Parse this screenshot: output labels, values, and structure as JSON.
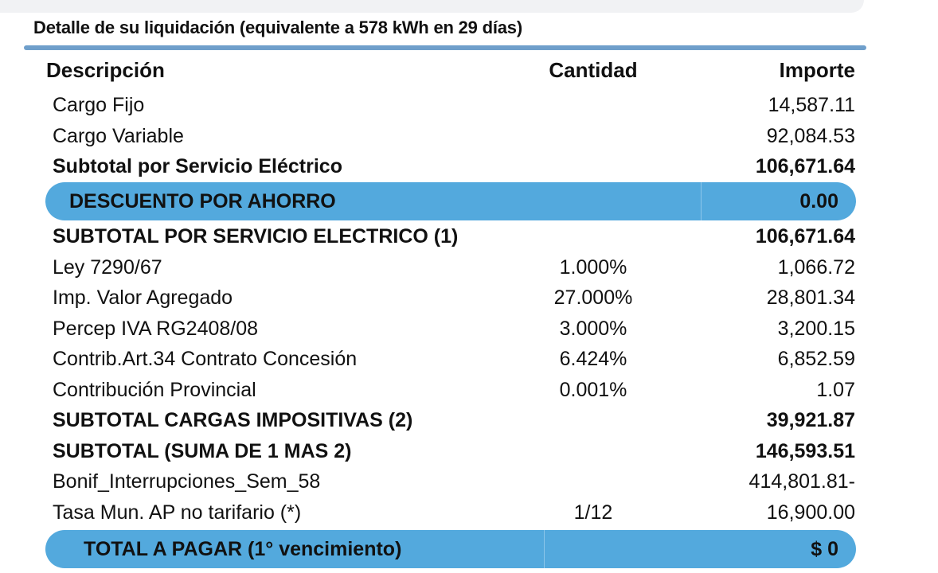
{
  "title": "Detalle de su liquidación (equivalente a 578 kWh en 29 días)",
  "columns": {
    "description": "Descripción",
    "quantity": "Cantidad",
    "amount": "Importe"
  },
  "rows": [
    {
      "description": "Cargo Fijo",
      "quantity": "",
      "amount": "14,587.11",
      "bold": false
    },
    {
      "description": "Cargo Variable",
      "quantity": "",
      "amount": "92,084.53",
      "bold": false
    },
    {
      "description": "Subtotal por Servicio Eléctrico",
      "quantity": "",
      "amount": "106,671.64",
      "bold": true
    }
  ],
  "discount": {
    "description": "DESCUENTO POR AHORRO",
    "amount": "0.00"
  },
  "rows2": [
    {
      "description": "SUBTOTAL POR SERVICIO ELECTRICO (1)",
      "quantity": "",
      "amount": "106,671.64",
      "bold": true
    },
    {
      "description": "Ley 7290/67",
      "quantity": "1.000%",
      "amount": "1,066.72",
      "bold": false
    },
    {
      "description": "Imp. Valor Agregado",
      "quantity": "27.000%",
      "amount": "28,801.34",
      "bold": false
    },
    {
      "description": "Percep IVA RG2408/08",
      "quantity": "3.000%",
      "amount": "3,200.15",
      "bold": false
    },
    {
      "description": "Contrib.Art.34 Contrato Concesión",
      "quantity": "6.424%",
      "amount": "6,852.59",
      "bold": false
    },
    {
      "description": "Contribución Provincial",
      "quantity": "0.001%",
      "amount": "1.07",
      "bold": false
    },
    {
      "description": "SUBTOTAL CARGAS IMPOSITIVAS (2)",
      "quantity": "",
      "amount": "39,921.87",
      "bold": true
    },
    {
      "description": "SUBTOTAL (SUMA DE 1 MAS 2)",
      "quantity": "",
      "amount": "146,593.51",
      "bold": true
    },
    {
      "description": "Bonif_Interrupciones_Sem_58",
      "quantity": "",
      "amount": "414,801.81-",
      "bold": false
    },
    {
      "description": "Tasa Mun. AP no tarifario (*)",
      "quantity": "1/12",
      "amount": "16,900.00",
      "bold": false
    }
  ],
  "total": {
    "description": "TOTAL A PAGAR (1° vencimiento)",
    "amount": "$ 0"
  },
  "colors": {
    "accent": "#53a9dd",
    "rule": "#6f9fcb"
  }
}
